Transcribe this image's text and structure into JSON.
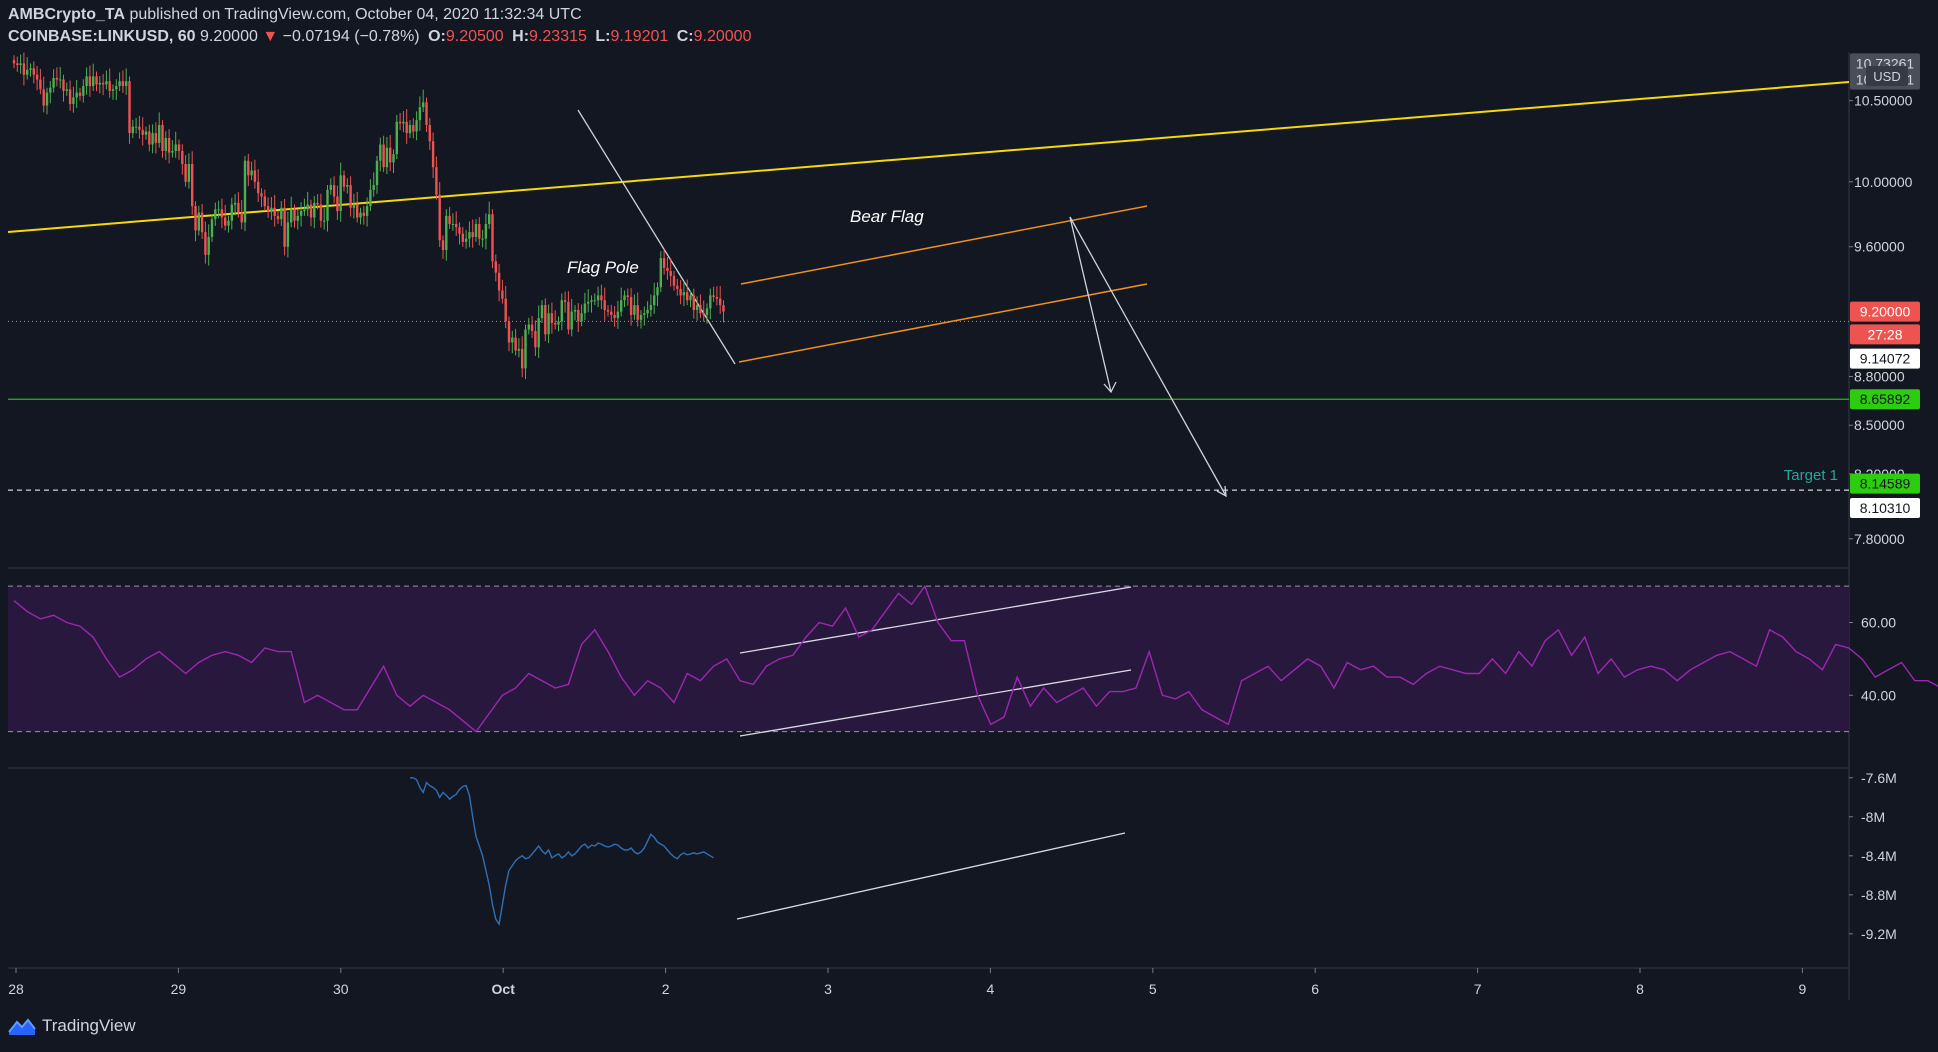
{
  "header": {
    "publisher": "AMBCrypto_TA",
    "published_text": "published on TradingView.com, October 04, 2020 11:32:34 UTC",
    "symbol": "COINBASE:LINKUSD, 60",
    "last": "9.20000",
    "change": "−0.07194 (−0.78%)",
    "open_label": "O:",
    "open": "9.20500",
    "high_label": "H:",
    "high": "9.23315",
    "low_label": "L:",
    "low": "9.19201",
    "close_label": "C:",
    "close": "9.20000"
  },
  "brand": {
    "name": "TradingView"
  },
  "colors": {
    "background": "#131722",
    "up": "#26a69a",
    "up_candle": "#4caf50",
    "down": "#ef5350",
    "trendline": "#f5d90a",
    "flag": "#f0901d",
    "support": "#26b81f",
    "rsi": "#9c27b0",
    "rsi_band": "#2a1840",
    "obv": "#2f6fb5",
    "arrow": "#cfd3dc"
  },
  "chart_data": [
    {
      "type": "candlestick",
      "title": "",
      "x_ticks": [
        "28",
        "29",
        "30",
        "Oct",
        "2",
        "3",
        "4",
        "5",
        "6",
        "7",
        "8",
        "9"
      ],
      "x_range": [
        "2020-09-28",
        "2020-10-09"
      ],
      "ylim": [
        7.62,
        10.8
      ],
      "y_ticks": [
        "10.50000",
        "10.00000",
        "9.60000",
        "8.80000",
        "8.50000",
        "8.20000",
        "7.80000"
      ],
      "currency_label": "USD",
      "price_labels": [
        {
          "label": "10.73261",
          "value": 10.73,
          "style": "gray"
        },
        {
          "label": "10.63691",
          "value": 10.63,
          "style": "gray"
        },
        {
          "label": "9.20000",
          "value": 9.2,
          "style": "red"
        },
        {
          "label": "27:28",
          "value": 9.06,
          "style": "red"
        },
        {
          "label": "9.14072",
          "value": 8.91,
          "style": "white"
        },
        {
          "label": "8.65892",
          "value": 8.66,
          "style": "green"
        },
        {
          "label": "8.14589",
          "value": 8.14,
          "style": "green"
        },
        {
          "label": "8.10310",
          "value": 7.99,
          "style": "white"
        }
      ],
      "last_price_line": 9.14,
      "support_line": 8.66,
      "target_line": 8.1,
      "target_label": "Target 1",
      "annotations": [
        "Flag Pole",
        "Bear Flag"
      ],
      "candles_close": [
        10.73,
        10.72,
        10.73,
        10.66,
        10.69,
        10.7,
        10.66,
        10.63,
        10.57,
        10.47,
        10.55,
        10.58,
        10.64,
        10.63,
        10.63,
        10.56,
        10.57,
        10.48,
        10.52,
        10.55,
        10.53,
        10.59,
        10.65,
        10.59,
        10.65,
        10.6,
        10.61,
        10.6,
        10.62,
        10.56,
        10.57,
        10.59,
        10.62,
        10.59,
        10.62,
        10.3,
        10.34,
        10.34,
        10.32,
        10.29,
        10.31,
        10.23,
        10.3,
        10.24,
        10.35,
        10.19,
        10.27,
        10.18,
        10.19,
        10.23,
        10.19,
        10.11,
        10.0,
        10.11,
        9.85,
        9.7,
        9.81,
        9.69,
        9.55,
        9.66,
        9.77,
        9.83,
        9.83,
        9.78,
        9.73,
        9.76,
        9.86,
        9.87,
        9.81,
        9.75,
        10.13,
        10.04,
        10.07,
        10.0,
        9.93,
        9.91,
        9.85,
        9.82,
        9.84,
        9.79,
        9.77,
        9.84,
        9.6,
        9.75,
        9.83,
        9.76,
        9.79,
        9.82,
        9.83,
        9.86,
        9.78,
        9.87,
        9.86,
        9.76,
        9.76,
        9.95,
        9.98,
        9.91,
        9.82,
        10.04,
        9.97,
        9.98,
        9.84,
        9.86,
        9.78,
        9.81,
        9.79,
        9.85,
        9.95,
        9.98,
        10.13,
        10.23,
        10.09,
        10.21,
        10.12,
        10.17,
        10.37,
        10.36,
        10.37,
        10.3,
        10.35,
        10.31,
        10.38,
        10.46,
        10.49,
        10.35,
        10.25,
        10.09,
        9.92,
        9.64,
        9.58,
        9.79,
        9.74,
        9.74,
        9.72,
        9.68,
        9.63,
        9.65,
        9.69,
        9.66,
        9.74,
        9.65,
        9.65,
        9.74,
        9.8,
        9.51,
        9.44,
        9.33,
        9.28,
        9.14,
        9.01,
        9.04,
        8.96,
        8.97,
        8.85,
        9.09,
        9.12,
        9.08,
        8.98,
        9.16,
        9.24,
        9.06,
        9.19,
        9.13,
        9.12,
        9.14,
        9.27,
        9.26,
        9.09,
        9.2,
        9.21,
        9.14,
        9.19,
        9.25,
        9.26,
        9.27,
        9.27,
        9.3,
        9.27,
        9.21,
        9.2,
        9.18,
        9.16,
        9.2,
        9.27,
        9.3,
        9.29,
        9.18,
        9.24,
        9.15,
        9.18,
        9.19,
        9.21,
        9.24,
        9.3,
        9.35,
        9.53,
        9.47,
        9.45,
        9.42,
        9.36,
        9.34,
        9.3,
        9.32,
        9.27,
        9.3,
        9.21,
        9.24,
        9.19,
        9.18,
        9.22,
        9.3,
        9.29,
        9.28,
        9.24,
        9.2
      ]
    },
    {
      "type": "line",
      "title": "",
      "series": [
        {
          "x_start": 0,
          "x_step": 4,
          "values": [
            66,
            63,
            61,
            62,
            60,
            59,
            56,
            50,
            45,
            47,
            50,
            52,
            49,
            46,
            49,
            51,
            52,
            51,
            49,
            53,
            52,
            52,
            38,
            40,
            38,
            36,
            36,
            42,
            48,
            40,
            37,
            40,
            38,
            36,
            33,
            30,
            35,
            40,
            42,
            46,
            44,
            42,
            43,
            54,
            58,
            52,
            45,
            40,
            44,
            42,
            38,
            46,
            44,
            48,
            50,
            44,
            43,
            48,
            50,
            51,
            56,
            60,
            59,
            64,
            56,
            58,
            63,
            68,
            65,
            70,
            60,
            55,
            55,
            40,
            32,
            34,
            45,
            37,
            42,
            38,
            40,
            42,
            37,
            41,
            41,
            42,
            52,
            40,
            39,
            41,
            36,
            34,
            32,
            44,
            46,
            48,
            44,
            47,
            50,
            48,
            42,
            49,
            47,
            48,
            45,
            45,
            43,
            46,
            48,
            47,
            46,
            46,
            50,
            46,
            52,
            48,
            55,
            58,
            51,
            56,
            46,
            50,
            45,
            47,
            48,
            47,
            44,
            47,
            49,
            51,
            52,
            50,
            48,
            58,
            56,
            52,
            50,
            47,
            54,
            53,
            50,
            45,
            47,
            49,
            44,
            44,
            42,
            51,
            49,
            48,
            46,
            44,
            45,
            50
          ]
        }
      ],
      "ylim": [
        20,
        75
      ],
      "y_ticks": [
        "60.00",
        "40.00"
      ],
      "band": [
        30,
        70
      ]
    },
    {
      "type": "line",
      "title": "",
      "series": [
        {
          "x_start": 120,
          "x_step": 1,
          "values": [
            -7.6,
            -7.6,
            -7.62,
            -7.7,
            -7.75,
            -7.65,
            -7.68,
            -7.7,
            -7.73,
            -7.8,
            -7.75,
            -7.78,
            -7.82,
            -7.79,
            -7.77,
            -7.72,
            -7.69,
            -7.68,
            -7.78,
            -8.0,
            -8.2,
            -8.3,
            -8.4,
            -8.55,
            -8.7,
            -8.9,
            -9.05,
            -9.1,
            -8.9,
            -8.7,
            -8.55,
            -8.5,
            -8.45,
            -8.42,
            -8.4,
            -8.43,
            -8.42,
            -8.38,
            -8.34,
            -8.3,
            -8.35,
            -8.38,
            -8.34,
            -8.42,
            -8.4,
            -8.38,
            -8.42,
            -8.4,
            -8.36,
            -8.4,
            -8.38,
            -8.34,
            -8.3,
            -8.28,
            -8.32,
            -8.29,
            -8.3,
            -8.27,
            -8.28,
            -8.3,
            -8.31,
            -8.3,
            -8.28,
            -8.29,
            -8.32,
            -8.34,
            -8.34,
            -8.32,
            -8.36,
            -8.38,
            -8.36,
            -8.32,
            -8.25,
            -8.18,
            -8.21,
            -8.26,
            -8.28,
            -8.3,
            -8.34,
            -8.38,
            -8.41,
            -8.43,
            -8.39,
            -8.37,
            -8.39,
            -8.38,
            -8.37,
            -8.38,
            -8.37,
            -8.36,
            -8.38,
            -8.4,
            -8.42
          ]
        }
      ],
      "ylim": [
        -9.55,
        -7.5
      ],
      "y_ticks": [
        "-7.6M",
        "-8M",
        "-8.4M",
        "-8.8M",
        "-9.2M"
      ]
    }
  ]
}
